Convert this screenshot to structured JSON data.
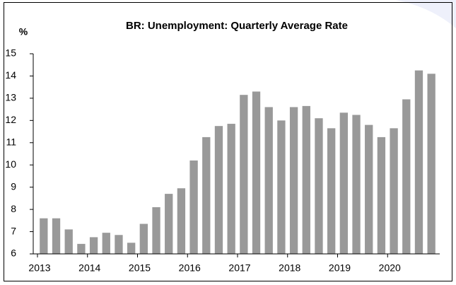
{
  "chart_data": {
    "type": "bar",
    "title": "BR: Unemployment: Quarterly Average Rate",
    "y_label": "%",
    "categories": [
      "2013",
      null,
      null,
      null,
      "2014",
      null,
      null,
      null,
      "2015",
      null,
      null,
      null,
      "2016",
      null,
      null,
      null,
      "2017",
      null,
      null,
      null,
      "2018",
      null,
      null,
      null,
      "2019",
      null,
      null,
      null,
      "2020",
      null,
      null,
      null
    ],
    "values": [
      7.6,
      7.6,
      7.1,
      6.45,
      6.75,
      6.95,
      6.85,
      6.5,
      7.35,
      8.1,
      8.7,
      8.95,
      10.2,
      11.25,
      11.75,
      11.85,
      13.15,
      13.3,
      12.6,
      12.0,
      12.6,
      12.65,
      12.1,
      11.65,
      12.35,
      12.25,
      11.8,
      11.25,
      11.65,
      12.95,
      14.25,
      14.1
    ],
    "color": "#999999",
    "ylim": [
      6,
      15
    ],
    "yticks": [
      6,
      7,
      8,
      9,
      10,
      11,
      12,
      13,
      14,
      15
    ],
    "grid": false
  }
}
